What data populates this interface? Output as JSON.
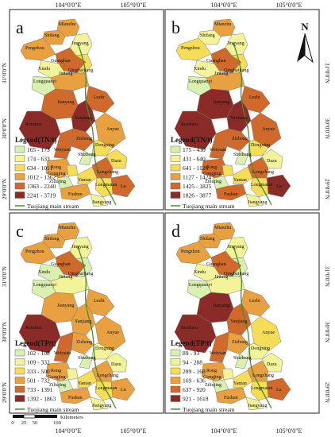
{
  "grid_labels": {
    "top_left": "104°0'0\"E",
    "top_right": "105°0'0\"E",
    "bottom_left": "104°0'0\"E",
    "bottom_right": "105°0'0\"E",
    "lat_top": "31°0'0\"N",
    "lat_mid": "30°0'0\"N",
    "lat_bottom": "29°0'0\"N"
  },
  "north_label": "N",
  "stream_label": "Tuojiang main stream",
  "scale_bar": {
    "ticks": [
      "0",
      "25",
      "50",
      "100"
    ],
    "unit": "Kilometers"
  },
  "counties": [
    {
      "name": "Mianzhu"
    },
    {
      "name": "Shifang"
    },
    {
      "name": "Pengzhou"
    },
    {
      "name": "Jingyang"
    },
    {
      "name": "Guanghan"
    },
    {
      "name": "Xindu"
    },
    {
      "name": "Qingbaijiang"
    },
    {
      "name": "Jintang"
    },
    {
      "name": "Longquanyi"
    },
    {
      "name": "Jianyang"
    },
    {
      "name": "Lezhi"
    },
    {
      "name": "Yanjiang"
    },
    {
      "name": "Renshou"
    },
    {
      "name": "Zizhong"
    },
    {
      "name": "Anyue"
    },
    {
      "name": "Weiyuan"
    },
    {
      "name": "Dongxing"
    },
    {
      "name": "Shizhong"
    },
    {
      "name": "Dazu"
    },
    {
      "name": "Rong"
    },
    {
      "name": "Gongjing"
    },
    {
      "name": "Longchang"
    },
    {
      "name": "Ziliujing"
    },
    {
      "name": "Yantan"
    },
    {
      "name": "Fushun"
    },
    {
      "name": "Lu"
    },
    {
      "name": "Longmatan"
    },
    {
      "name": "Jiangyang"
    }
  ],
  "panels": [
    {
      "letter": "a",
      "legend_title": "Legend(TN/t)",
      "classes": [
        {
          "range": "165 - 173",
          "color": "#d9f0b0"
        },
        {
          "range": "174 - 633",
          "color": "#f3f49a"
        },
        {
          "range": "634 - 1011",
          "color": "#f5dd5a"
        },
        {
          "range": "1012 - 1362",
          "color": "#e8a040"
        },
        {
          "range": "1363 - 2240",
          "color": "#cf6a2c"
        },
        {
          "range": "2241 - 3719",
          "color": "#8a2b27"
        }
      ],
      "county_colors": [
        "#e8a040",
        "#e8a040",
        "#e8a040",
        "#f3f49a",
        "#cf6a2c",
        "#f3f49a",
        "#f5dd5a",
        "#e8a040",
        "#d9f0b0",
        "#cf6a2c",
        "#cf6a2c",
        "#8a2b27",
        "#8a2b27",
        "#cf6a2c",
        "#e8a040",
        "#cf6a2c",
        "#f5dd5a",
        "#d9f0b0",
        "#f5dd5a",
        "#e8a040",
        "#f5dd5a",
        "#cf6a2c",
        "#d9f0b0",
        "#f5dd5a",
        "#e8a040",
        "#cf6a2c",
        "#f5dd5a",
        "#f3f49a"
      ]
    },
    {
      "letter": "b",
      "legend_title": "Legend(TN/t)",
      "classes": [
        {
          "range": "175 - 430",
          "color": "#d9f0b0"
        },
        {
          "range": "431 - 640",
          "color": "#f3f49a"
        },
        {
          "range": "641 - 1126",
          "color": "#f5dd5a"
        },
        {
          "range": "1127 - 1424",
          "color": "#e8a040"
        },
        {
          "range": "1425 - 1825",
          "color": "#cf6a2c"
        },
        {
          "range": "1826 - 3877",
          "color": "#8a2b27"
        }
      ],
      "county_colors": [
        "#e8a040",
        "#f3f49a",
        "#f5dd5a",
        "#f3f49a",
        "#cf6a2c",
        "#f3f49a",
        "#f5dd5a",
        "#e8a040",
        "#d9f0b0",
        "#8a2b27",
        "#cf6a2c",
        "#8a2b27",
        "#8a2b27",
        "#cf6a2c",
        "#cf6a2c",
        "#cf6a2c",
        "#f5dd5a",
        "#d9f0b0",
        "#f3f49a",
        "#cf6a2c",
        "#f5dd5a",
        "#cf6a2c",
        "#d9f0b0",
        "#f5dd5a",
        "#cf6a2c",
        "#8a2b27",
        "#f5dd5a",
        "#f3f49a"
      ]
    },
    {
      "letter": "c",
      "legend_title": "Legend(TP/t)",
      "classes": [
        {
          "range": "102 - 108",
          "color": "#d9f0b0"
        },
        {
          "range": "109 - 332",
          "color": "#f3f49a"
        },
        {
          "range": "333 - 500",
          "color": "#f5dd5a"
        },
        {
          "range": "501 - 732",
          "color": "#e8a040"
        },
        {
          "range": "733 - 1391",
          "color": "#cf6a2c"
        },
        {
          "range": "1392 - 1863",
          "color": "#8a2b27"
        }
      ],
      "county_colors": [
        "#e8a040",
        "#e8a040",
        "#e8a040",
        "#f3f49a",
        "#cf6a2c",
        "#d9f0b0",
        "#d9f0b0",
        "#f3f49a",
        "#d9f0b0",
        "#e8a040",
        "#e8a040",
        "#e8a040",
        "#8a2b27",
        "#e8a040",
        "#e8a040",
        "#cf6a2c",
        "#f3f49a",
        "#d9f0b0",
        "#f3f49a",
        "#e8a040",
        "#f3f49a",
        "#e8a040",
        "#d9f0b0",
        "#f5dd5a",
        "#e8a040",
        "#e8a040",
        "#f5dd5a",
        "#f3f49a"
      ]
    },
    {
      "letter": "d",
      "legend_title": "Legend(TP/t)",
      "classes": [
        {
          "range": "89 - 93",
          "color": "#d9f0b0"
        },
        {
          "range": "94 - 288",
          "color": "#f3f49a"
        },
        {
          "range": "289 - 168",
          "color": "#f5dd5a"
        },
        {
          "range": "169 - 636",
          "color": "#e8a040"
        },
        {
          "range": "637 - 920",
          "color": "#cf6a2c"
        },
        {
          "range": "921 - 1618",
          "color": "#8a2b27"
        }
      ],
      "county_colors": [
        "#e8a040",
        "#e8a040",
        "#e8a040",
        "#f3f49a",
        "#cf6a2c",
        "#f3f49a",
        "#d9f0b0",
        "#f3f49a",
        "#d9f0b0",
        "#8a2b27",
        "#e8a040",
        "#cf6a2c",
        "#8a2b27",
        "#e8a040",
        "#f5dd5a",
        "#cf6a2c",
        "#f3f49a",
        "#d9f0b0",
        "#f3f49a",
        "#e8a040",
        "#f3f49a",
        "#e8a040",
        "#d9f0b0",
        "#f5dd5a",
        "#e8a040",
        "#cf6a2c",
        "#f5dd5a",
        "#f3f49a"
      ]
    }
  ]
}
